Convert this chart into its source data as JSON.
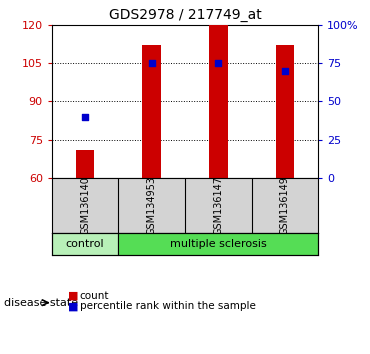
{
  "title": "GDS2978 / 217749_at",
  "samples": [
    "GSM136140",
    "GSM134953",
    "GSM136147",
    "GSM136149"
  ],
  "bar_values": [
    71,
    112,
    120,
    112
  ],
  "percentile_values": [
    40,
    75,
    75,
    70
  ],
  "ylim_left": [
    60,
    120
  ],
  "ylim_right": [
    0,
    100
  ],
  "yticks_left": [
    60,
    75,
    90,
    105,
    120
  ],
  "yticks_right": [
    0,
    25,
    50,
    75,
    100
  ],
  "yticklabels_right": [
    "0",
    "25",
    "50",
    "75",
    "100%"
  ],
  "bar_color": "#cc0000",
  "dot_color": "#0000cc",
  "bar_width": 0.28,
  "left_tick_color": "#cc0000",
  "right_tick_color": "#0000cc",
  "control_color": "#b8f0b8",
  "ms_color": "#55dd55",
  "disease_label": "disease state",
  "legend_bar_label": "count",
  "legend_dot_label": "percentile rank within the sample",
  "bg_color": "#ffffff",
  "sample_bg_color": "#d3d3d3",
  "title_fontsize": 10,
  "tick_fontsize": 8,
  "sample_fontsize": 7,
  "disease_fontsize": 8,
  "legend_fontsize": 7.5
}
